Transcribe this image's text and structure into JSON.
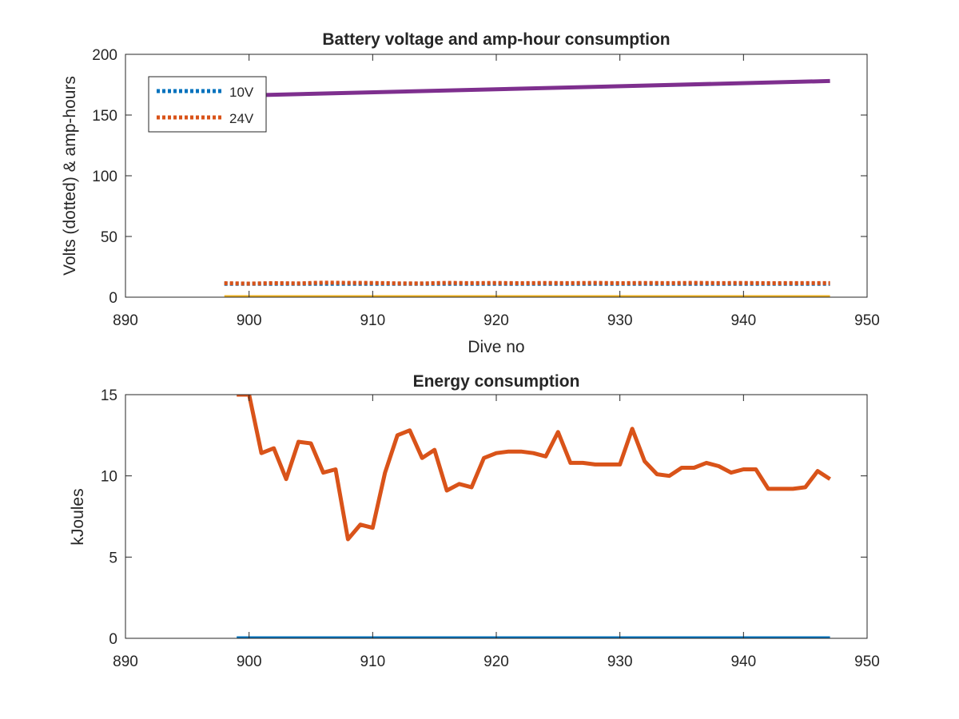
{
  "chart_data": [
    {
      "type": "line",
      "title": "Battery voltage and amp-hour consumption",
      "xlabel": "Dive no",
      "ylabel": "Volts (dotted) & amp-hours",
      "xlim": [
        890,
        950
      ],
      "ylim": [
        0,
        200
      ],
      "xticks": [
        "890",
        "900",
        "910",
        "920",
        "930",
        "940",
        "950"
      ],
      "yticks": [
        "0",
        "50",
        "100",
        "150",
        "200"
      ],
      "grid": false,
      "legend": {
        "placement": "top-left",
        "entries": [
          {
            "label": "10V",
            "color": "#0072BD",
            "style": "dotted"
          },
          {
            "label": "24V",
            "color": "#D95319",
            "style": "dotted"
          }
        ]
      },
      "series": [
        {
          "name": "10V",
          "color": "#0072BD",
          "style": "dotted",
          "x": [
            898,
            947
          ],
          "y": [
            11,
            11
          ]
        },
        {
          "name": "24V",
          "color": "#D95319",
          "style": "dotted",
          "x": [
            898,
            900,
            902,
            904,
            906,
            908,
            910,
            912,
            914,
            916,
            918,
            920,
            922,
            924,
            926,
            928,
            930,
            932,
            934,
            936,
            938,
            940,
            942,
            944,
            946,
            947
          ],
          "y": [
            11.5,
            11.2,
            11.6,
            11.3,
            12.0,
            11.8,
            11.7,
            11.4,
            11.3,
            11.8,
            11.6,
            11.7,
            11.5,
            11.7,
            11.6,
            11.8,
            11.5,
            11.7,
            11.6,
            11.8,
            11.6,
            11.7,
            11.5,
            11.6,
            11.6,
            11.6
          ]
        },
        {
          "color": "#EDB120",
          "style": "solid",
          "x": [
            898,
            947
          ],
          "y": [
            0,
            0
          ]
        },
        {
          "color": "#7E2F8E",
          "style": "solid",
          "x": [
            899,
            947
          ],
          "y": [
            166,
            178
          ]
        }
      ]
    },
    {
      "type": "line",
      "title": "Energy consumption",
      "xlabel": "",
      "ylabel": "kJoules",
      "xlim": [
        890,
        950
      ],
      "ylim": [
        0,
        15
      ],
      "xticks": [
        "890",
        "900",
        "910",
        "920",
        "930",
        "940",
        "950"
      ],
      "yticks": [
        "0",
        "5",
        "10",
        "15"
      ],
      "grid": false,
      "series": [
        {
          "color": "#0072BD",
          "style": "solid",
          "x": [
            899,
            947
          ],
          "y": [
            0,
            0
          ]
        },
        {
          "color": "#D95319",
          "style": "solid",
          "x": [
            899,
            900,
            901,
            902,
            903,
            904,
            905,
            906,
            907,
            908,
            909,
            910,
            911,
            912,
            913,
            914,
            915,
            916,
            917,
            918,
            919,
            920,
            921,
            922,
            923,
            924,
            925,
            926,
            927,
            928,
            929,
            930,
            931,
            932,
            933,
            934,
            935,
            936,
            937,
            938,
            939,
            940,
            941,
            942,
            943,
            944,
            945,
            946,
            947
          ],
          "y": [
            15,
            15,
            11.4,
            11.7,
            9.8,
            12.1,
            12.0,
            10.2,
            10.4,
            6.1,
            7.0,
            6.8,
            10.2,
            12.5,
            12.8,
            11.1,
            11.6,
            9.1,
            9.5,
            9.3,
            11.1,
            11.4,
            11.5,
            11.5,
            11.4,
            11.2,
            12.7,
            10.8,
            10.8,
            10.7,
            10.7,
            10.7,
            12.9,
            10.9,
            10.1,
            10.0,
            10.5,
            10.5,
            10.8,
            10.6,
            10.2,
            10.4,
            10.4,
            9.2,
            9.2,
            9.2,
            9.3,
            10.3,
            9.8
          ]
        }
      ]
    }
  ]
}
